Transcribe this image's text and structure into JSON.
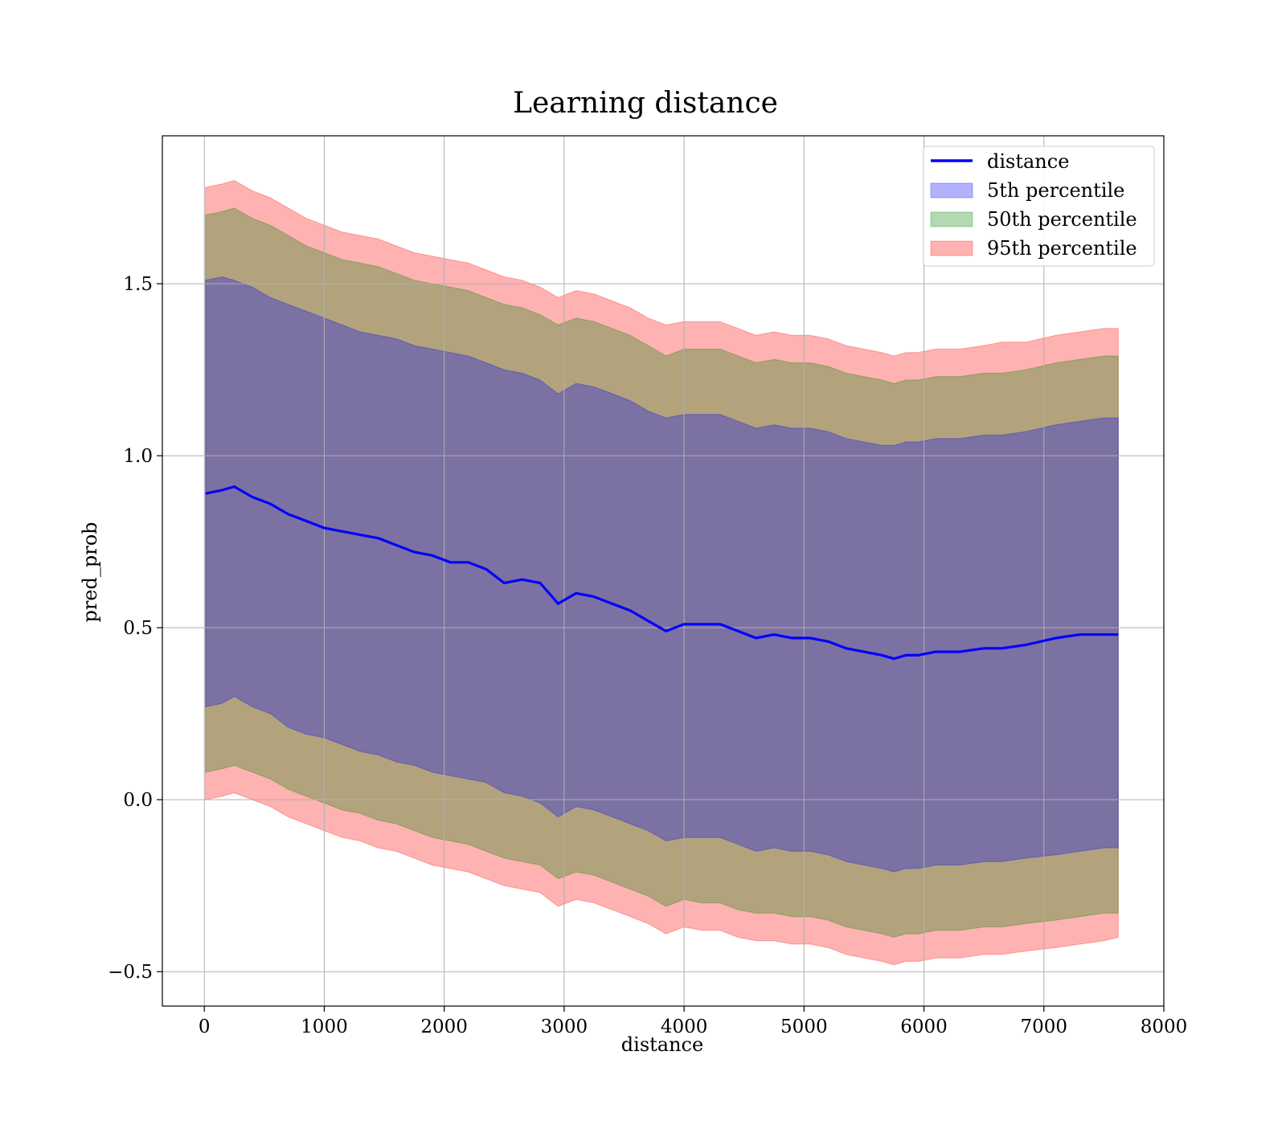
{
  "chart_data": {
    "type": "line",
    "title": "Learning distance",
    "xlabel": "distance",
    "ylabel": "pred_prob",
    "xlim": [
      -350,
      8000
    ],
    "ylim": [
      -0.6,
      1.93
    ],
    "grid": true,
    "legend_position": "top-right",
    "x_ticks": [
      {
        "value": 0,
        "label": "0"
      },
      {
        "value": 1000,
        "label": "1000"
      },
      {
        "value": 2000,
        "label": "2000"
      },
      {
        "value": 3000,
        "label": "3000"
      },
      {
        "value": 4000,
        "label": "4000"
      },
      {
        "value": 5000,
        "label": "5000"
      },
      {
        "value": 6000,
        "label": "6000"
      },
      {
        "value": 7000,
        "label": "7000"
      },
      {
        "value": 8000,
        "label": "8000"
      }
    ],
    "y_ticks": [
      {
        "value": -0.5,
        "label": "−0.5"
      },
      {
        "value": 0.0,
        "label": "0.0"
      },
      {
        "value": 0.5,
        "label": "0.5"
      },
      {
        "value": 1.0,
        "label": "1.0"
      },
      {
        "value": 1.5,
        "label": "1.5"
      }
    ],
    "x": [
      10,
      150,
      250,
      400,
      550,
      700,
      850,
      1000,
      1150,
      1300,
      1450,
      1600,
      1750,
      1900,
      2050,
      2200,
      2350,
      2500,
      2650,
      2800,
      2950,
      3100,
      3250,
      3400,
      3550,
      3700,
      3850,
      4000,
      4150,
      4300,
      4450,
      4600,
      4750,
      4900,
      5050,
      5200,
      5350,
      5500,
      5650,
      5750,
      5850,
      5950,
      6100,
      6300,
      6500,
      6650,
      6850,
      7100,
      7300,
      7500,
      7620
    ],
    "series": [
      {
        "name": "distance",
        "kind": "line",
        "color": "#0000ff",
        "values": [
          0.89,
          0.9,
          0.91,
          0.88,
          0.86,
          0.83,
          0.81,
          0.79,
          0.78,
          0.77,
          0.76,
          0.74,
          0.72,
          0.71,
          0.69,
          0.69,
          0.67,
          0.63,
          0.64,
          0.63,
          0.57,
          0.6,
          0.59,
          0.57,
          0.55,
          0.52,
          0.49,
          0.51,
          0.51,
          0.51,
          0.49,
          0.47,
          0.48,
          0.47,
          0.47,
          0.46,
          0.44,
          0.43,
          0.42,
          0.41,
          0.42,
          0.42,
          0.43,
          0.43,
          0.44,
          0.44,
          0.45,
          0.47,
          0.48,
          0.48,
          0.48
        ]
      },
      {
        "name": "5th percentile",
        "kind": "band",
        "color": "#0000ff",
        "upper": [
          1.51,
          1.52,
          1.51,
          1.49,
          1.46,
          1.44,
          1.42,
          1.4,
          1.38,
          1.36,
          1.35,
          1.34,
          1.32,
          1.31,
          1.3,
          1.29,
          1.27,
          1.25,
          1.24,
          1.22,
          1.18,
          1.21,
          1.2,
          1.18,
          1.16,
          1.13,
          1.11,
          1.12,
          1.12,
          1.12,
          1.1,
          1.08,
          1.09,
          1.08,
          1.08,
          1.07,
          1.05,
          1.04,
          1.03,
          1.03,
          1.04,
          1.04,
          1.05,
          1.05,
          1.06,
          1.06,
          1.07,
          1.09,
          1.1,
          1.11,
          1.11
        ],
        "lower": [
          0.27,
          0.28,
          0.3,
          0.27,
          0.25,
          0.21,
          0.19,
          0.18,
          0.16,
          0.14,
          0.13,
          0.11,
          0.1,
          0.08,
          0.07,
          0.06,
          0.05,
          0.02,
          0.01,
          -0.01,
          -0.05,
          -0.02,
          -0.03,
          -0.05,
          -0.07,
          -0.09,
          -0.12,
          -0.11,
          -0.11,
          -0.11,
          -0.13,
          -0.15,
          -0.14,
          -0.15,
          -0.15,
          -0.16,
          -0.18,
          -0.19,
          -0.2,
          -0.21,
          -0.2,
          -0.2,
          -0.19,
          -0.19,
          -0.18,
          -0.18,
          -0.17,
          -0.16,
          -0.15,
          -0.14,
          -0.14
        ]
      },
      {
        "name": "50th percentile",
        "kind": "band",
        "color": "#008000",
        "upper": [
          1.7,
          1.71,
          1.72,
          1.69,
          1.67,
          1.64,
          1.61,
          1.59,
          1.57,
          1.56,
          1.55,
          1.53,
          1.51,
          1.5,
          1.49,
          1.48,
          1.46,
          1.44,
          1.43,
          1.41,
          1.38,
          1.4,
          1.39,
          1.37,
          1.35,
          1.32,
          1.29,
          1.31,
          1.31,
          1.31,
          1.29,
          1.27,
          1.28,
          1.27,
          1.27,
          1.26,
          1.24,
          1.23,
          1.22,
          1.21,
          1.22,
          1.22,
          1.23,
          1.23,
          1.24,
          1.24,
          1.25,
          1.27,
          1.28,
          1.29,
          1.29
        ],
        "lower": [
          0.08,
          0.09,
          0.1,
          0.08,
          0.06,
          0.03,
          0.01,
          -0.01,
          -0.03,
          -0.04,
          -0.06,
          -0.07,
          -0.09,
          -0.11,
          -0.12,
          -0.13,
          -0.15,
          -0.17,
          -0.18,
          -0.19,
          -0.23,
          -0.21,
          -0.22,
          -0.24,
          -0.26,
          -0.28,
          -0.31,
          -0.29,
          -0.3,
          -0.3,
          -0.32,
          -0.33,
          -0.33,
          -0.34,
          -0.34,
          -0.35,
          -0.37,
          -0.38,
          -0.39,
          -0.4,
          -0.39,
          -0.39,
          -0.38,
          -0.38,
          -0.37,
          -0.37,
          -0.36,
          -0.35,
          -0.34,
          -0.33,
          -0.33
        ]
      },
      {
        "name": "95th percentile",
        "kind": "band",
        "color": "#ff0000",
        "upper": [
          1.78,
          1.79,
          1.8,
          1.77,
          1.75,
          1.72,
          1.69,
          1.67,
          1.65,
          1.64,
          1.63,
          1.61,
          1.59,
          1.58,
          1.57,
          1.56,
          1.54,
          1.52,
          1.51,
          1.49,
          1.46,
          1.48,
          1.47,
          1.45,
          1.43,
          1.4,
          1.38,
          1.39,
          1.39,
          1.39,
          1.37,
          1.35,
          1.36,
          1.35,
          1.35,
          1.34,
          1.32,
          1.31,
          1.3,
          1.29,
          1.3,
          1.3,
          1.31,
          1.31,
          1.32,
          1.33,
          1.33,
          1.35,
          1.36,
          1.37,
          1.37
        ],
        "lower": [
          0.0,
          0.01,
          0.02,
          0.0,
          -0.02,
          -0.05,
          -0.07,
          -0.09,
          -0.11,
          -0.12,
          -0.14,
          -0.15,
          -0.17,
          -0.19,
          -0.2,
          -0.21,
          -0.23,
          -0.25,
          -0.26,
          -0.27,
          -0.31,
          -0.29,
          -0.3,
          -0.32,
          -0.34,
          -0.36,
          -0.39,
          -0.37,
          -0.38,
          -0.38,
          -0.4,
          -0.41,
          -0.41,
          -0.42,
          -0.42,
          -0.43,
          -0.45,
          -0.46,
          -0.47,
          -0.48,
          -0.47,
          -0.47,
          -0.46,
          -0.46,
          -0.45,
          -0.45,
          -0.44,
          -0.43,
          -0.42,
          -0.41,
          -0.4
        ]
      }
    ]
  }
}
